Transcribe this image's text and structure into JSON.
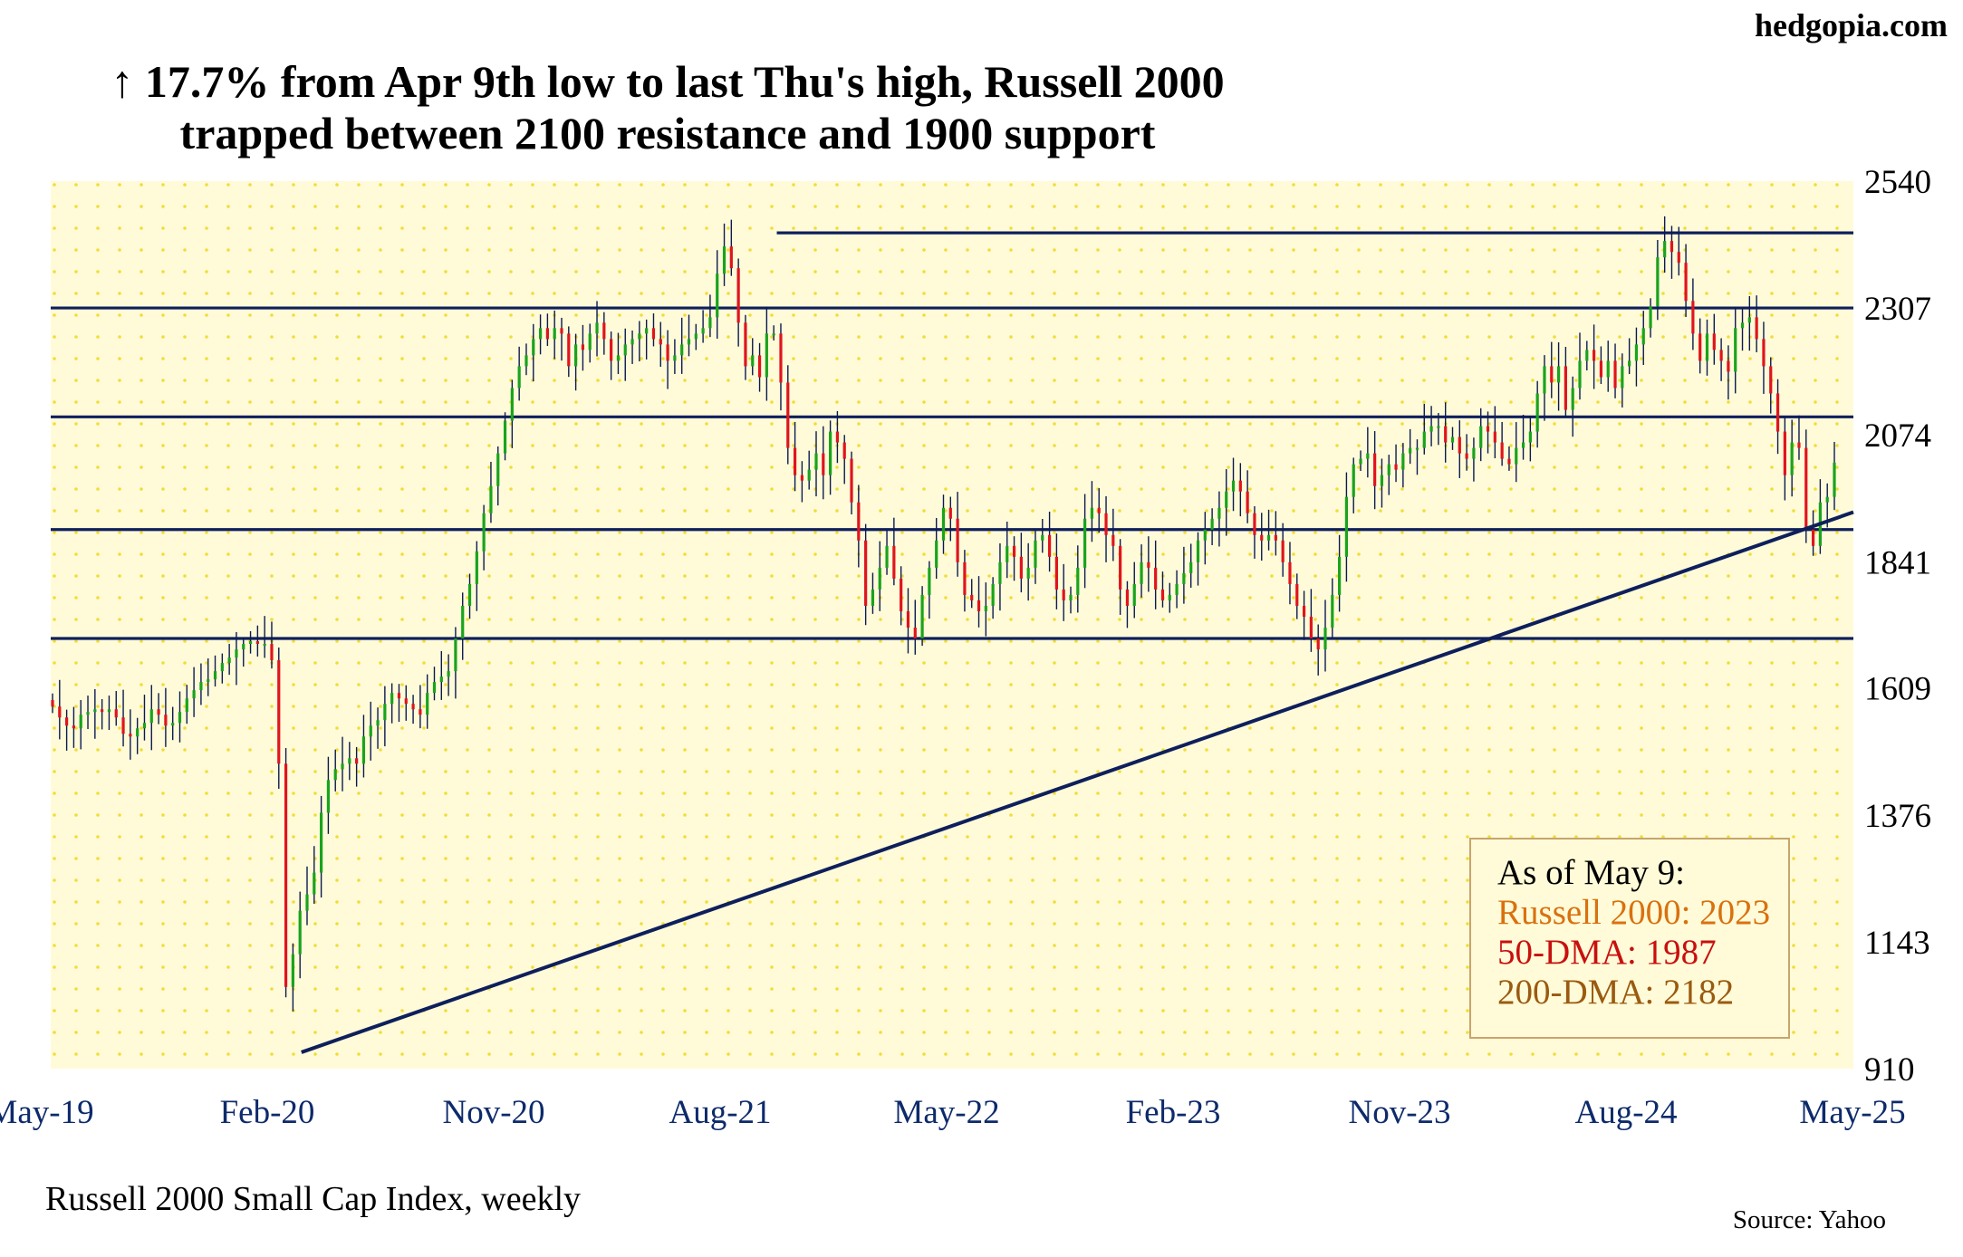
{
  "site": "hedgopia.com",
  "source": "Source: Yahoo",
  "footnote": "Russell 2000 Small Cap Index, weekly",
  "colors": {
    "up": "#19a31e",
    "down": "#e0141e",
    "wick": "#0b1a52",
    "line": "#0e1f5c",
    "plot_bg": "#fffbd8",
    "dot": "#f5df3a"
  },
  "chart_data": {
    "type": "ohlc",
    "title": "↑ 17.7% from Apr 9th low to last Thu's high, Russell 2000",
    "subtitle": "trapped between 2100 resistance and 1900 support",
    "xlabel": "Russell 2000 Small Cap Index, weekly",
    "ylabel": "",
    "x_ticks": [
      "May-19",
      "Feb-20",
      "Nov-20",
      "Aug-21",
      "May-22",
      "Feb-23",
      "Nov-23",
      "Aug-24",
      "May-25"
    ],
    "y_ticks": [
      910,
      1143,
      1376,
      1609,
      1841,
      2074,
      2307,
      2540
    ],
    "ylim": [
      910,
      2540
    ],
    "xlim": [
      "2019-05",
      "2025-05"
    ],
    "grid": "dotted",
    "horizontal_lines": [
      {
        "y": 2445,
        "x_start": "2021-10",
        "x_end": "2025-05"
      },
      {
        "y": 2307,
        "x_start": "2019-05",
        "x_end": "2025-05"
      },
      {
        "y": 2107,
        "x_start": "2019-05",
        "x_end": "2025-05"
      },
      {
        "y": 1900,
        "x_start": "2019-05",
        "x_end": "2025-05"
      },
      {
        "y": 1700,
        "x_start": "2019-05",
        "x_end": "2025-05"
      }
    ],
    "trendline": {
      "x_start": "2020-02",
      "y_start": 950,
      "x_end": "2025-05",
      "y_end": 1932
    },
    "series": [
      {
        "values": [
          1575,
          1555,
          1540,
          1535,
          1560,
          1565,
          1570,
          1565,
          1570,
          1555,
          1525,
          1520,
          1535,
          1545,
          1570,
          1560,
          1540,
          1545,
          1565,
          1590,
          1605,
          1620,
          1625,
          1640,
          1655,
          1665,
          1680,
          1690,
          1695,
          1690,
          1690,
          1660,
          1470,
          1060,
          1120,
          1200,
          1230,
          1270,
          1380,
          1440,
          1460,
          1470,
          1480,
          1470,
          1520,
          1540,
          1550,
          1580,
          1600,
          1590,
          1580,
          1570,
          1560,
          1600,
          1620,
          1630,
          1640,
          1700,
          1760,
          1800,
          1860,
          1930,
          1980,
          2040,
          2100,
          2160,
          2200,
          2220,
          2250,
          2270,
          2250,
          2270,
          2260,
          2200,
          2240,
          2230,
          2260,
          2280,
          2250,
          2210,
          2220,
          2240,
          2250,
          2260,
          2270,
          2250,
          2240,
          2210,
          2220,
          2240,
          2250,
          2260,
          2270,
          2290,
          2370,
          2420,
          2380,
          2280,
          2200,
          2220,
          2180,
          2260,
          2260,
          2170,
          2050,
          2000,
          1990,
          2010,
          2040,
          2000,
          2080,
          2060,
          2030,
          1950,
          1880,
          1760,
          1790,
          1830,
          1870,
          1810,
          1750,
          1720,
          1700,
          1780,
          1830,
          1880,
          1940,
          1920,
          1840,
          1780,
          1770,
          1750,
          1760,
          1800,
          1840,
          1870,
          1850,
          1810,
          1830,
          1880,
          1890,
          1850,
          1790,
          1770,
          1780,
          1830,
          1920,
          1940,
          1930,
          1890,
          1870,
          1790,
          1760,
          1800,
          1840,
          1830,
          1790,
          1770,
          1780,
          1800,
          1820,
          1840,
          1880,
          1900,
          1920,
          1940,
          1970,
          1990,
          1970,
          1930,
          1890,
          1880,
          1890,
          1880,
          1840,
          1800,
          1760,
          1740,
          1700,
          1680,
          1720,
          1780,
          1850,
          1960,
          2020,
          2030,
          2040,
          1980,
          2000,
          2020,
          2010,
          2040,
          2050,
          2050,
          2080,
          2090,
          2090,
          2060,
          2070,
          2040,
          2030,
          2050,
          2090,
          2080,
          2060,
          2030,
          2020,
          2050,
          2060,
          2080,
          2150,
          2200,
          2170,
          2200,
          2120,
          2160,
          2210,
          2230,
          2210,
          2180,
          2210,
          2160,
          2200,
          2210,
          2240,
          2270,
          2310,
          2400,
          2430,
          2410,
          2390,
          2320,
          2260,
          2210,
          2260,
          2230,
          2210,
          2190,
          2270,
          2280,
          2290,
          2250,
          2200,
          2150,
          2080,
          2000,
          2060,
          2050,
          1900,
          1870,
          1950,
          1960,
          2023
        ]
      }
    ]
  },
  "legend": {
    "header": "As of May 9:",
    "lines": [
      "Russell 2000: 2023",
      "50-DMA: 1987",
      "200-DMA: 2182"
    ],
    "colors": [
      "#d9710f",
      "#c8100e",
      "#9a5a10"
    ]
  }
}
